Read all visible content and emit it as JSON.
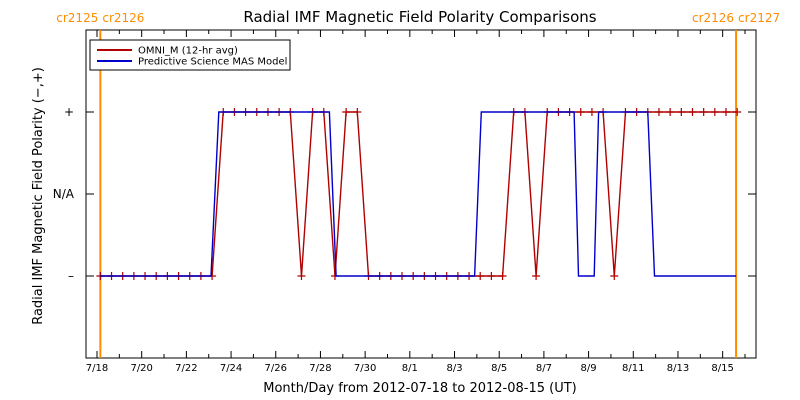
{
  "chart_data": {
    "type": "line",
    "title": "Radial IMF Magnetic Field Polarity Comparisons",
    "xlabel": "Month/Day from 2012-07-18 to 2012-08-15 (UT)",
    "ylabel": "Radial IMF Magnetic Field Polarity (−,+)",
    "xlim": [
      0,
      29
    ],
    "ylim": [
      -2,
      2
    ],
    "y_levels": [
      {
        "value": 1,
        "label": "+"
      },
      {
        "value": 0,
        "label": "N/A"
      },
      {
        "value": -1,
        "label": "–"
      }
    ],
    "x_ticks": [
      {
        "value": 0,
        "label": "7/18"
      },
      {
        "value": 2,
        "label": "7/20"
      },
      {
        "value": 4,
        "label": "7/22"
      },
      {
        "value": 6,
        "label": "7/24"
      },
      {
        "value": 8,
        "label": "7/26"
      },
      {
        "value": 10,
        "label": "7/28"
      },
      {
        "value": 12,
        "label": "7/30"
      },
      {
        "value": 14,
        "label": "8/1"
      },
      {
        "value": 16,
        "label": "8/3"
      },
      {
        "value": 18,
        "label": "8/5"
      },
      {
        "value": 20,
        "label": "8/7"
      },
      {
        "value": 22,
        "label": "8/9"
      },
      {
        "value": 24,
        "label": "8/11"
      },
      {
        "value": 26,
        "label": "8/13"
      },
      {
        "value": 28,
        "label": "8/15"
      }
    ],
    "rotation_markers": [
      {
        "x": 0.15,
        "left_label": "cr2125",
        "right_label": "cr2126"
      },
      {
        "x": 28.6,
        "left_label": "cr2126",
        "right_label": "cr2127"
      }
    ],
    "rotation_color": "#ff8c00",
    "legend_position": "top-left",
    "series": [
      {
        "name": "OMNI_M (12-hr avg)",
        "color": "#b00000",
        "markers": "plus",
        "x": [
          0.15,
          0.65,
          1.15,
          1.65,
          2.15,
          2.65,
          3.15,
          3.65,
          4.15,
          4.65,
          5.15,
          5.65,
          6.15,
          6.65,
          7.15,
          7.65,
          8.15,
          8.65,
          9.15,
          9.65,
          10.15,
          10.65,
          11.15,
          11.65,
          12.15,
          12.65,
          13.15,
          13.65,
          14.15,
          14.65,
          15.15,
          15.65,
          16.15,
          16.65,
          17.15,
          17.65,
          18.15,
          18.65,
          19.15,
          19.65,
          20.15,
          20.65,
          21.15,
          21.65,
          22.15,
          22.65,
          23.15,
          23.65,
          24.15,
          24.65,
          25.15,
          25.65,
          26.15,
          26.65,
          27.15,
          27.65,
          28.15,
          28.65
        ],
        "values": [
          -1,
          -1,
          -1,
          -1,
          -1,
          -1,
          -1,
          -1,
          -1,
          -1,
          -1,
          1,
          1,
          1,
          1,
          1,
          1,
          1,
          -1,
          1,
          1,
          -1,
          1,
          1,
          -1,
          -1,
          -1,
          -1,
          -1,
          -1,
          -1,
          -1,
          -1,
          -1,
          -1,
          -1,
          -1,
          1,
          1,
          -1,
          1,
          1,
          1,
          1,
          1,
          1,
          -1,
          1,
          1,
          1,
          1,
          1,
          1,
          1,
          1,
          1,
          1,
          1
        ]
      },
      {
        "name": "Predictive Science MAS Model",
        "color": "#0000cc",
        "markers": "none",
        "x": [
          0.15,
          5.1,
          5.45,
          10.4,
          10.7,
          16.9,
          17.2,
          21.35,
          21.55,
          22.25,
          22.45,
          24.65,
          24.95,
          28.6
        ],
        "values": [
          -1,
          -1,
          1,
          1,
          -1,
          -1,
          1,
          1,
          -1,
          -1,
          1,
          1,
          -1,
          -1
        ]
      }
    ]
  }
}
